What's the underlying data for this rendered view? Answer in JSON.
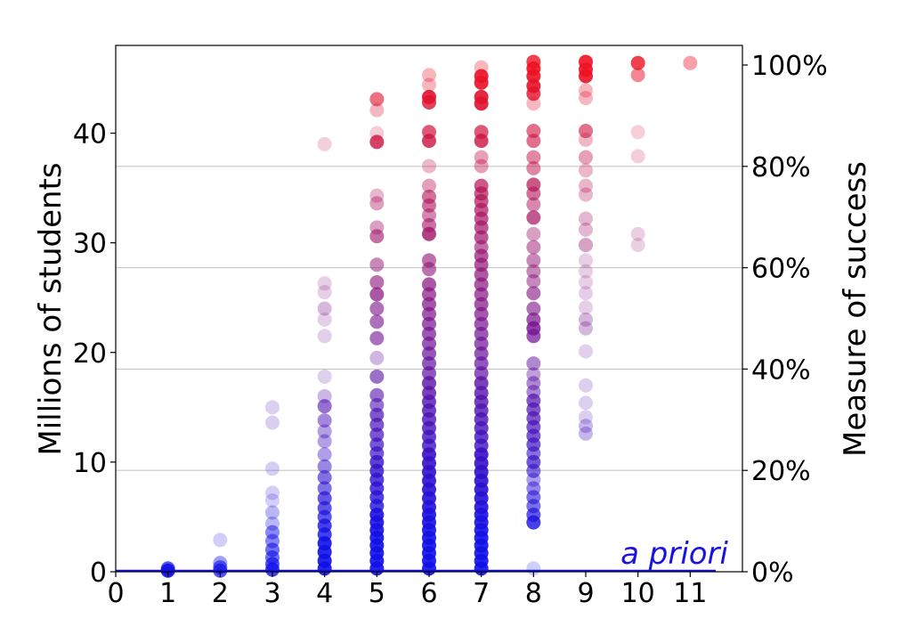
{
  "chart_data": {
    "type": "scatter",
    "xlabel": "",
    "ylabel": "Millions of students",
    "ylabel_right": "Measure of success",
    "xlim": [
      0,
      12
    ],
    "ylim": [
      0,
      48
    ],
    "xticks": [
      "0",
      "1",
      "2",
      "3",
      "4",
      "5",
      "6",
      "7",
      "8",
      "9",
      "10",
      "11"
    ],
    "yticks": [
      "0",
      "10",
      "20",
      "30",
      "40"
    ],
    "yticks_right": [
      "0%",
      "20%",
      "40%",
      "60%",
      "80%",
      "100%"
    ],
    "right_axis_max_percent": 100,
    "grid": "horizontal lines at right-axis ticks",
    "annotation": "a priori",
    "color_low": "#1010e8",
    "color_high": "#ee1122",
    "points": [
      {
        "x": 1,
        "y": 0.1,
        "a": 0.9
      },
      {
        "x": 1,
        "y": 0.3,
        "a": 0.7
      },
      {
        "x": 2,
        "y": 0.1,
        "a": 0.7
      },
      {
        "x": 2,
        "y": 0.4,
        "a": 0.6
      },
      {
        "x": 2,
        "y": 0.8,
        "a": 0.4
      },
      {
        "x": 2,
        "y": 2.9,
        "a": 0.2
      },
      {
        "x": 3,
        "y": 0.2,
        "a": 0.8
      },
      {
        "x": 3,
        "y": 0.7,
        "a": 0.7
      },
      {
        "x": 3,
        "y": 1.3,
        "a": 0.6
      },
      {
        "x": 3,
        "y": 2.0,
        "a": 0.6
      },
      {
        "x": 3,
        "y": 2.8,
        "a": 0.5
      },
      {
        "x": 3,
        "y": 3.6,
        "a": 0.5
      },
      {
        "x": 3,
        "y": 4.4,
        "a": 0.3
      },
      {
        "x": 3,
        "y": 5.4,
        "a": 0.3
      },
      {
        "x": 3,
        "y": 6.5,
        "a": 0.2
      },
      {
        "x": 3,
        "y": 7.2,
        "a": 0.2
      },
      {
        "x": 3,
        "y": 9.4,
        "a": 0.2
      },
      {
        "x": 3,
        "y": 13.6,
        "a": 0.2
      },
      {
        "x": 3,
        "y": 15.0,
        "a": 0.2
      },
      {
        "x": 4,
        "y": 0.3,
        "a": 0.9
      },
      {
        "x": 4,
        "y": 1.0,
        "a": 0.9
      },
      {
        "x": 4,
        "y": 1.8,
        "a": 0.9
      },
      {
        "x": 4,
        "y": 2.6,
        "a": 0.9
      },
      {
        "x": 4,
        "y": 3.4,
        "a": 0.8
      },
      {
        "x": 4,
        "y": 4.2,
        "a": 0.8
      },
      {
        "x": 4,
        "y": 5.0,
        "a": 0.7
      },
      {
        "x": 4,
        "y": 5.8,
        "a": 0.7
      },
      {
        "x": 4,
        "y": 6.7,
        "a": 0.7
      },
      {
        "x": 4,
        "y": 7.6,
        "a": 0.6
      },
      {
        "x": 4,
        "y": 8.6,
        "a": 0.6
      },
      {
        "x": 4,
        "y": 9.6,
        "a": 0.5
      },
      {
        "x": 4,
        "y": 10.7,
        "a": 0.4
      },
      {
        "x": 4,
        "y": 11.9,
        "a": 0.4
      },
      {
        "x": 4,
        "y": 12.8,
        "a": 0.4
      },
      {
        "x": 4,
        "y": 13.8,
        "a": 0.5
      },
      {
        "x": 4,
        "y": 15.1,
        "a": 0.6
      },
      {
        "x": 4,
        "y": 16.0,
        "a": 0.3
      },
      {
        "x": 4,
        "y": 17.8,
        "a": 0.2
      },
      {
        "x": 4,
        "y": 21.5,
        "a": 0.2
      },
      {
        "x": 4,
        "y": 23.0,
        "a": 0.2
      },
      {
        "x": 4,
        "y": 24.0,
        "a": 0.3
      },
      {
        "x": 4,
        "y": 25.5,
        "a": 0.2
      },
      {
        "x": 4,
        "y": 26.3,
        "a": 0.2
      },
      {
        "x": 4,
        "y": 39.0,
        "a": 0.2
      },
      {
        "x": 5,
        "y": 0.3,
        "a": 0.9
      },
      {
        "x": 5,
        "y": 1.0,
        "a": 0.9
      },
      {
        "x": 5,
        "y": 1.7,
        "a": 0.9
      },
      {
        "x": 5,
        "y": 2.4,
        "a": 0.9
      },
      {
        "x": 5,
        "y": 3.1,
        "a": 0.9
      },
      {
        "x": 5,
        "y": 3.8,
        "a": 0.9
      },
      {
        "x": 5,
        "y": 4.5,
        "a": 0.9
      },
      {
        "x": 5,
        "y": 5.2,
        "a": 0.9
      },
      {
        "x": 5,
        "y": 6.0,
        "a": 0.8
      },
      {
        "x": 5,
        "y": 6.8,
        "a": 0.8
      },
      {
        "x": 5,
        "y": 7.6,
        "a": 0.8
      },
      {
        "x": 5,
        "y": 8.4,
        "a": 0.8
      },
      {
        "x": 5,
        "y": 9.2,
        "a": 0.8
      },
      {
        "x": 5,
        "y": 10.0,
        "a": 0.8
      },
      {
        "x": 5,
        "y": 10.8,
        "a": 0.7
      },
      {
        "x": 5,
        "y": 11.6,
        "a": 0.7
      },
      {
        "x": 5,
        "y": 12.5,
        "a": 0.7
      },
      {
        "x": 5,
        "y": 13.4,
        "a": 0.7
      },
      {
        "x": 5,
        "y": 14.3,
        "a": 0.7
      },
      {
        "x": 5,
        "y": 15.2,
        "a": 0.6
      },
      {
        "x": 5,
        "y": 16.1,
        "a": 0.6
      },
      {
        "x": 5,
        "y": 17.8,
        "a": 0.6
      },
      {
        "x": 5,
        "y": 19.5,
        "a": 0.3
      },
      {
        "x": 5,
        "y": 21.3,
        "a": 0.6
      },
      {
        "x": 5,
        "y": 22.8,
        "a": 0.6
      },
      {
        "x": 5,
        "y": 24.0,
        "a": 0.6
      },
      {
        "x": 5,
        "y": 25.3,
        "a": 0.7
      },
      {
        "x": 5,
        "y": 26.4,
        "a": 0.6
      },
      {
        "x": 5,
        "y": 28.0,
        "a": 0.5
      },
      {
        "x": 5,
        "y": 30.6,
        "a": 0.6
      },
      {
        "x": 5,
        "y": 31.4,
        "a": 0.4
      },
      {
        "x": 5,
        "y": 33.6,
        "a": 0.4
      },
      {
        "x": 5,
        "y": 34.3,
        "a": 0.3
      },
      {
        "x": 5,
        "y": 39.2,
        "a": 0.8
      },
      {
        "x": 5,
        "y": 40.0,
        "a": 0.2
      },
      {
        "x": 5,
        "y": 42.1,
        "a": 0.3
      },
      {
        "x": 5,
        "y": 43.1,
        "a": 0.6
      },
      {
        "x": 6,
        "y": 0.3,
        "a": 0.9
      },
      {
        "x": 6,
        "y": 1.0,
        "a": 0.9
      },
      {
        "x": 6,
        "y": 1.7,
        "a": 0.9
      },
      {
        "x": 6,
        "y": 2.4,
        "a": 0.9
      },
      {
        "x": 6,
        "y": 3.1,
        "a": 0.9
      },
      {
        "x": 6,
        "y": 3.8,
        "a": 0.9
      },
      {
        "x": 6,
        "y": 4.5,
        "a": 0.9
      },
      {
        "x": 6,
        "y": 5.2,
        "a": 0.9
      },
      {
        "x": 6,
        "y": 5.9,
        "a": 0.9
      },
      {
        "x": 6,
        "y": 6.7,
        "a": 0.9
      },
      {
        "x": 6,
        "y": 7.5,
        "a": 0.9
      },
      {
        "x": 6,
        "y": 8.3,
        "a": 0.9
      },
      {
        "x": 6,
        "y": 9.1,
        "a": 0.9
      },
      {
        "x": 6,
        "y": 9.9,
        "a": 0.9
      },
      {
        "x": 6,
        "y": 10.7,
        "a": 0.9
      },
      {
        "x": 6,
        "y": 11.5,
        "a": 0.8
      },
      {
        "x": 6,
        "y": 12.3,
        "a": 0.8
      },
      {
        "x": 6,
        "y": 13.1,
        "a": 0.8
      },
      {
        "x": 6,
        "y": 13.9,
        "a": 0.8
      },
      {
        "x": 6,
        "y": 14.7,
        "a": 0.8
      },
      {
        "x": 6,
        "y": 15.5,
        "a": 0.8
      },
      {
        "x": 6,
        "y": 16.3,
        "a": 0.8
      },
      {
        "x": 6,
        "y": 17.2,
        "a": 0.8
      },
      {
        "x": 6,
        "y": 18.1,
        "a": 0.7
      },
      {
        "x": 6,
        "y": 19.0,
        "a": 0.7
      },
      {
        "x": 6,
        "y": 19.9,
        "a": 0.7
      },
      {
        "x": 6,
        "y": 20.8,
        "a": 0.7
      },
      {
        "x": 6,
        "y": 21.7,
        "a": 0.7
      },
      {
        "x": 6,
        "y": 22.6,
        "a": 0.7
      },
      {
        "x": 6,
        "y": 23.5,
        "a": 0.7
      },
      {
        "x": 6,
        "y": 24.4,
        "a": 0.7
      },
      {
        "x": 6,
        "y": 25.3,
        "a": 0.7
      },
      {
        "x": 6,
        "y": 26.2,
        "a": 0.7
      },
      {
        "x": 6,
        "y": 27.6,
        "a": 0.6
      },
      {
        "x": 6,
        "y": 28.4,
        "a": 0.6
      },
      {
        "x": 6,
        "y": 30.8,
        "a": 0.8
      },
      {
        "x": 6,
        "y": 31.6,
        "a": 0.6
      },
      {
        "x": 6,
        "y": 32.5,
        "a": 0.5
      },
      {
        "x": 6,
        "y": 33.4,
        "a": 0.6
      },
      {
        "x": 6,
        "y": 34.2,
        "a": 0.6
      },
      {
        "x": 6,
        "y": 35.2,
        "a": 0.4
      },
      {
        "x": 6,
        "y": 37.0,
        "a": 0.3
      },
      {
        "x": 6,
        "y": 39.3,
        "a": 0.8
      },
      {
        "x": 6,
        "y": 40.1,
        "a": 0.7
      },
      {
        "x": 6,
        "y": 42.8,
        "a": 0.8
      },
      {
        "x": 6,
        "y": 43.3,
        "a": 0.9
      },
      {
        "x": 6,
        "y": 44.4,
        "a": 0.3
      },
      {
        "x": 6,
        "y": 45.3,
        "a": 0.3
      },
      {
        "x": 7,
        "y": 0.3,
        "a": 0.9
      },
      {
        "x": 7,
        "y": 1.0,
        "a": 0.9
      },
      {
        "x": 7,
        "y": 1.7,
        "a": 0.9
      },
      {
        "x": 7,
        "y": 2.4,
        "a": 0.9
      },
      {
        "x": 7,
        "y": 3.1,
        "a": 0.9
      },
      {
        "x": 7,
        "y": 3.8,
        "a": 0.9
      },
      {
        "x": 7,
        "y": 4.5,
        "a": 0.9
      },
      {
        "x": 7,
        "y": 5.2,
        "a": 0.9
      },
      {
        "x": 7,
        "y": 5.9,
        "a": 0.9
      },
      {
        "x": 7,
        "y": 6.7,
        "a": 0.9
      },
      {
        "x": 7,
        "y": 7.5,
        "a": 0.9
      },
      {
        "x": 7,
        "y": 8.3,
        "a": 0.9
      },
      {
        "x": 7,
        "y": 9.1,
        "a": 0.9
      },
      {
        "x": 7,
        "y": 9.9,
        "a": 0.9
      },
      {
        "x": 7,
        "y": 10.7,
        "a": 0.9
      },
      {
        "x": 7,
        "y": 11.5,
        "a": 0.8
      },
      {
        "x": 7,
        "y": 12.3,
        "a": 0.8
      },
      {
        "x": 7,
        "y": 13.1,
        "a": 0.8
      },
      {
        "x": 7,
        "y": 13.9,
        "a": 0.8
      },
      {
        "x": 7,
        "y": 14.7,
        "a": 0.8
      },
      {
        "x": 7,
        "y": 15.5,
        "a": 0.8
      },
      {
        "x": 7,
        "y": 16.3,
        "a": 0.8
      },
      {
        "x": 7,
        "y": 17.2,
        "a": 0.8
      },
      {
        "x": 7,
        "y": 18.1,
        "a": 0.7
      },
      {
        "x": 7,
        "y": 19.0,
        "a": 0.7
      },
      {
        "x": 7,
        "y": 19.9,
        "a": 0.7
      },
      {
        "x": 7,
        "y": 20.8,
        "a": 0.7
      },
      {
        "x": 7,
        "y": 21.7,
        "a": 0.7
      },
      {
        "x": 7,
        "y": 22.6,
        "a": 0.7
      },
      {
        "x": 7,
        "y": 23.5,
        "a": 0.7
      },
      {
        "x": 7,
        "y": 24.4,
        "a": 0.7
      },
      {
        "x": 7,
        "y": 25.3,
        "a": 0.7
      },
      {
        "x": 7,
        "y": 26.2,
        "a": 0.7
      },
      {
        "x": 7,
        "y": 27.1,
        "a": 0.7
      },
      {
        "x": 7,
        "y": 28.0,
        "a": 0.7
      },
      {
        "x": 7,
        "y": 28.8,
        "a": 0.7
      },
      {
        "x": 7,
        "y": 29.6,
        "a": 0.6
      },
      {
        "x": 7,
        "y": 30.5,
        "a": 0.7
      },
      {
        "x": 7,
        "y": 31.4,
        "a": 0.7
      },
      {
        "x": 7,
        "y": 32.2,
        "a": 0.7
      },
      {
        "x": 7,
        "y": 33.0,
        "a": 0.7
      },
      {
        "x": 7,
        "y": 33.8,
        "a": 0.7
      },
      {
        "x": 7,
        "y": 34.5,
        "a": 0.7
      },
      {
        "x": 7,
        "y": 35.2,
        "a": 0.7
      },
      {
        "x": 7,
        "y": 37.0,
        "a": 0.4
      },
      {
        "x": 7,
        "y": 37.8,
        "a": 0.4
      },
      {
        "x": 7,
        "y": 39.3,
        "a": 0.8
      },
      {
        "x": 7,
        "y": 40.1,
        "a": 0.7
      },
      {
        "x": 7,
        "y": 42.7,
        "a": 0.9
      },
      {
        "x": 7,
        "y": 43.3,
        "a": 0.9
      },
      {
        "x": 7,
        "y": 44.6,
        "a": 0.9
      },
      {
        "x": 7,
        "y": 45.2,
        "a": 0.9
      },
      {
        "x": 7,
        "y": 46.0,
        "a": 0.3
      },
      {
        "x": 8,
        "y": 0.3,
        "a": 0.2
      },
      {
        "x": 8,
        "y": 4.5,
        "a": 0.8
      },
      {
        "x": 8,
        "y": 5.2,
        "a": 0.7
      },
      {
        "x": 8,
        "y": 6.0,
        "a": 0.6
      },
      {
        "x": 8,
        "y": 6.8,
        "a": 0.6
      },
      {
        "x": 8,
        "y": 7.6,
        "a": 0.5
      },
      {
        "x": 8,
        "y": 8.4,
        "a": 0.4
      },
      {
        "x": 8,
        "y": 9.2,
        "a": 0.6
      },
      {
        "x": 8,
        "y": 10.0,
        "a": 0.7
      },
      {
        "x": 8,
        "y": 10.8,
        "a": 0.6
      },
      {
        "x": 8,
        "y": 11.6,
        "a": 0.7
      },
      {
        "x": 8,
        "y": 12.4,
        "a": 0.7
      },
      {
        "x": 8,
        "y": 13.2,
        "a": 0.7
      },
      {
        "x": 8,
        "y": 14.0,
        "a": 0.7
      },
      {
        "x": 8,
        "y": 14.8,
        "a": 0.7
      },
      {
        "x": 8,
        "y": 15.6,
        "a": 0.7
      },
      {
        "x": 8,
        "y": 16.4,
        "a": 0.5
      },
      {
        "x": 8,
        "y": 17.2,
        "a": 0.5
      },
      {
        "x": 8,
        "y": 18.0,
        "a": 0.4
      },
      {
        "x": 8,
        "y": 19.0,
        "a": 0.5
      },
      {
        "x": 8,
        "y": 21.5,
        "a": 0.7
      },
      {
        "x": 8,
        "y": 22.2,
        "a": 0.8
      },
      {
        "x": 8,
        "y": 23.0,
        "a": 0.7
      },
      {
        "x": 8,
        "y": 24.0,
        "a": 0.6
      },
      {
        "x": 8,
        "y": 25.4,
        "a": 0.6
      },
      {
        "x": 8,
        "y": 26.5,
        "a": 0.5
      },
      {
        "x": 8,
        "y": 27.4,
        "a": 0.5
      },
      {
        "x": 8,
        "y": 28.4,
        "a": 0.5
      },
      {
        "x": 8,
        "y": 29.6,
        "a": 0.5
      },
      {
        "x": 8,
        "y": 30.8,
        "a": 0.4
      },
      {
        "x": 8,
        "y": 32.3,
        "a": 0.7
      },
      {
        "x": 8,
        "y": 33.5,
        "a": 0.5
      },
      {
        "x": 8,
        "y": 34.5,
        "a": 0.6
      },
      {
        "x": 8,
        "y": 35.3,
        "a": 0.7
      },
      {
        "x": 8,
        "y": 36.8,
        "a": 0.5
      },
      {
        "x": 8,
        "y": 37.8,
        "a": 0.5
      },
      {
        "x": 8,
        "y": 39.3,
        "a": 0.6
      },
      {
        "x": 8,
        "y": 40.2,
        "a": 0.6
      },
      {
        "x": 8,
        "y": 42.7,
        "a": 0.3
      },
      {
        "x": 8,
        "y": 43.6,
        "a": 0.8
      },
      {
        "x": 8,
        "y": 44.3,
        "a": 0.9
      },
      {
        "x": 8,
        "y": 45.2,
        "a": 0.9
      },
      {
        "x": 8,
        "y": 45.9,
        "a": 0.9
      },
      {
        "x": 8,
        "y": 46.5,
        "a": 0.8
      },
      {
        "x": 9,
        "y": 12.6,
        "a": 0.3
      },
      {
        "x": 9,
        "y": 13.3,
        "a": 0.3
      },
      {
        "x": 9,
        "y": 14.1,
        "a": 0.2
      },
      {
        "x": 9,
        "y": 15.4,
        "a": 0.2
      },
      {
        "x": 9,
        "y": 17.0,
        "a": 0.2
      },
      {
        "x": 9,
        "y": 20.1,
        "a": 0.2
      },
      {
        "x": 9,
        "y": 22.2,
        "a": 0.3
      },
      {
        "x": 9,
        "y": 23.0,
        "a": 0.3
      },
      {
        "x": 9,
        "y": 24.1,
        "a": 0.2
      },
      {
        "x": 9,
        "y": 25.4,
        "a": 0.2
      },
      {
        "x": 9,
        "y": 26.4,
        "a": 0.2
      },
      {
        "x": 9,
        "y": 27.4,
        "a": 0.2
      },
      {
        "x": 9,
        "y": 28.4,
        "a": 0.2
      },
      {
        "x": 9,
        "y": 29.8,
        "a": 0.4
      },
      {
        "x": 9,
        "y": 31.2,
        "a": 0.3
      },
      {
        "x": 9,
        "y": 32.2,
        "a": 0.3
      },
      {
        "x": 9,
        "y": 34.4,
        "a": 0.3
      },
      {
        "x": 9,
        "y": 35.2,
        "a": 0.3
      },
      {
        "x": 9,
        "y": 36.6,
        "a": 0.3
      },
      {
        "x": 9,
        "y": 37.8,
        "a": 0.4
      },
      {
        "x": 9,
        "y": 39.4,
        "a": 0.3
      },
      {
        "x": 9,
        "y": 40.2,
        "a": 0.6
      },
      {
        "x": 9,
        "y": 43.2,
        "a": 0.3
      },
      {
        "x": 9,
        "y": 43.9,
        "a": 0.3
      },
      {
        "x": 9,
        "y": 45.2,
        "a": 0.9
      },
      {
        "x": 9,
        "y": 45.8,
        "a": 0.9
      },
      {
        "x": 9,
        "y": 46.5,
        "a": 0.9
      },
      {
        "x": 10,
        "y": 29.8,
        "a": 0.2
      },
      {
        "x": 10,
        "y": 30.8,
        "a": 0.2
      },
      {
        "x": 10,
        "y": 37.9,
        "a": 0.2
      },
      {
        "x": 10,
        "y": 40.1,
        "a": 0.2
      },
      {
        "x": 10,
        "y": 45.3,
        "a": 0.5
      },
      {
        "x": 10,
        "y": 46.4,
        "a": 0.8
      },
      {
        "x": 11,
        "y": 46.4,
        "a": 0.4
      }
    ]
  }
}
